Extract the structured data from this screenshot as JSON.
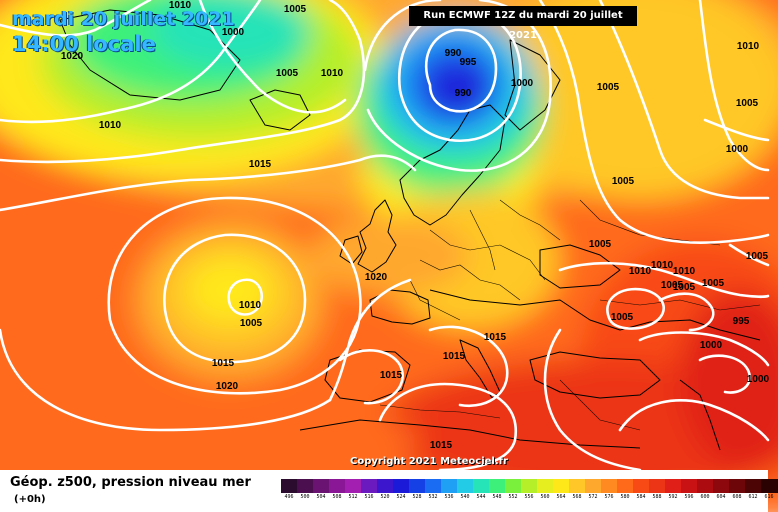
{
  "header": {
    "date": "mardi 20 juillet 2021",
    "local_time": "14:00 locale",
    "run": "Run ECMWF 12Z du mardi 20 juillet 2021"
  },
  "copyright": "Copyright 2021 Meteociel.fr",
  "legend": {
    "title": "Géop. z500, pression niveau mer",
    "subtitle": "(+0h)",
    "unit_note": "",
    "steps": [
      {
        "v": "496",
        "c": "#2b0b2e"
      },
      {
        "v": "500",
        "c": "#4b0f4f"
      },
      {
        "v": "504",
        "c": "#6a1373"
      },
      {
        "v": "508",
        "c": "#8a1796"
      },
      {
        "v": "512",
        "c": "#a31fb1"
      },
      {
        "v": "516",
        "c": "#6b1ac0"
      },
      {
        "v": "520",
        "c": "#3c16cc"
      },
      {
        "v": "524",
        "c": "#1a1ad8"
      },
      {
        "v": "528",
        "c": "#1440e6"
      },
      {
        "v": "532",
        "c": "#1a6cf2"
      },
      {
        "v": "536",
        "c": "#20a0f4"
      },
      {
        "v": "540",
        "c": "#23cbe6"
      },
      {
        "v": "544",
        "c": "#26e3b8"
      },
      {
        "v": "548",
        "c": "#3cf07a"
      },
      {
        "v": "552",
        "c": "#7af03c"
      },
      {
        "v": "556",
        "c": "#b4ef2a"
      },
      {
        "v": "560",
        "c": "#e6ee20"
      },
      {
        "v": "564",
        "c": "#ffe81a"
      },
      {
        "v": "568",
        "c": "#ffc828"
      },
      {
        "v": "572",
        "c": "#ffa82e"
      },
      {
        "v": "576",
        "c": "#ff8a22"
      },
      {
        "v": "580",
        "c": "#ff6a1a"
      },
      {
        "v": "584",
        "c": "#f84a14"
      },
      {
        "v": "588",
        "c": "#ec3416"
      },
      {
        "v": "592",
        "c": "#e02018"
      },
      {
        "v": "596",
        "c": "#c91214"
      },
      {
        "v": "600",
        "c": "#ac0c10"
      },
      {
        "v": "604",
        "c": "#8c080c"
      },
      {
        "v": "608",
        "c": "#6c0608"
      },
      {
        "v": "612",
        "c": "#4c0404"
      },
      {
        "v": "616",
        "c": "#2a0202"
      }
    ]
  },
  "isobar_labels": [
    {
      "text": "1010",
      "pos": "top-left"
    },
    {
      "text": "1005",
      "pos": "top-left"
    },
    {
      "text": "1000",
      "pos": "top-left"
    },
    {
      "text": "1020",
      "pos": "top-left"
    },
    {
      "text": "1005",
      "pos": "north-atlantic"
    },
    {
      "text": "1010",
      "pos": "north-atlantic"
    },
    {
      "text": "1010",
      "pos": "west-atlantic"
    },
    {
      "text": "1015",
      "pos": "mid-atlantic"
    },
    {
      "text": "990",
      "pos": "scandinavia"
    },
    {
      "text": "995",
      "pos": "scandinavia"
    },
    {
      "text": "990",
      "pos": "scandinavia"
    },
    {
      "text": "1000",
      "pos": "scandinavia"
    },
    {
      "text": "1005",
      "pos": "russia"
    },
    {
      "text": "1005",
      "pos": "russia"
    },
    {
      "text": "1000",
      "pos": "right-edge"
    },
    {
      "text": "1005",
      "pos": "right-edge"
    },
    {
      "text": "1010",
      "pos": "right-edge"
    },
    {
      "text": "1005",
      "pos": "ukraine"
    },
    {
      "text": "1020",
      "pos": "british-isles"
    },
    {
      "text": "1010",
      "pos": "azores"
    },
    {
      "text": "1005",
      "pos": "azores"
    },
    {
      "text": "1015",
      "pos": "azores"
    },
    {
      "text": "1020",
      "pos": "azores"
    },
    {
      "text": "1015",
      "pos": "balkans"
    },
    {
      "text": "1015",
      "pos": "italy"
    },
    {
      "text": "1015",
      "pos": "iberia"
    },
    {
      "text": "1015",
      "pos": "sahara"
    },
    {
      "text": "1010",
      "pos": "black-sea"
    },
    {
      "text": "1010",
      "pos": "black-sea"
    },
    {
      "text": "1005",
      "pos": "black-sea"
    },
    {
      "text": "1010",
      "pos": "black-sea"
    },
    {
      "text": "1005",
      "pos": "black-sea"
    },
    {
      "text": "1005",
      "pos": "caspian"
    },
    {
      "text": "1005",
      "pos": "caspian"
    },
    {
      "text": "1005",
      "pos": "turkey"
    },
    {
      "text": "995",
      "pos": "middle-east"
    },
    {
      "text": "1000",
      "pos": "middle-east"
    },
    {
      "text": "1000",
      "pos": "arabia"
    }
  ]
}
